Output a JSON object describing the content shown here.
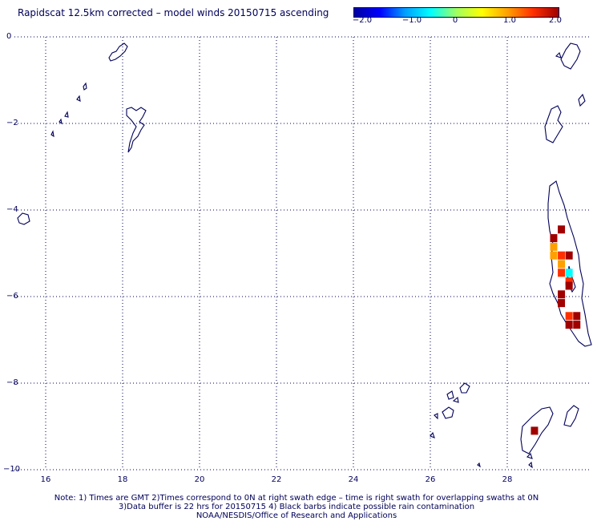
{
  "title": "Rapidscat 12.5km corrected – model winds 20150715 ascending",
  "colorbar": {
    "ticks": [
      "−2.0",
      "−1.0",
      "0",
      "1.0",
      "2.0"
    ],
    "range": [
      -2.0,
      2.0
    ],
    "colors": [
      "#0000a0",
      "#0000ff",
      "#00a0ff",
      "#00ffff",
      "#a0ff60",
      "#ffff00",
      "#ffa000",
      "#ff3000",
      "#a00000"
    ]
  },
  "axes": {
    "y_ticks": [
      "0",
      "−2",
      "−4",
      "−6",
      "−8",
      "−10"
    ],
    "x_ticks": [
      "16",
      "18",
      "20",
      "22",
      "24",
      "26",
      "28"
    ],
    "lat_range": [
      -10,
      0
    ],
    "lon_range": [
      15.2,
      29.5
    ]
  },
  "notes": {
    "line1": "Note: 1) Times are GMT 2)Times correspond to 0N at right swath edge – time is right swath for overlapping swaths at 0N",
    "line2": "3)Data buffer is 22 hrs for 20150715 4) Black barbs indicate possible rain contamination",
    "line3": "NOAA/NESDIS/Office of Research and Applications"
  },
  "wind_cells": [
    {
      "lon": 29.42,
      "lat": -4.45,
      "v": 2.2
    },
    {
      "lon": 29.22,
      "lat": -4.65,
      "v": 1.9
    },
    {
      "lon": 29.22,
      "lat": -4.85,
      "v": 1.2
    },
    {
      "lon": 29.22,
      "lat": -5.05,
      "v": 1.1
    },
    {
      "lon": 29.42,
      "lat": -5.05,
      "v": 1.3
    },
    {
      "lon": 29.62,
      "lat": -5.05,
      "v": 1.9
    },
    {
      "lon": 29.42,
      "lat": -5.25,
      "v": 0.8
    },
    {
      "lon": 29.42,
      "lat": -5.45,
      "v": 1.7
    },
    {
      "lon": 29.62,
      "lat": -5.45,
      "v": -0.6
    },
    {
      "lon": 29.62,
      "lat": -5.65,
      "v": 1.3
    },
    {
      "lon": 29.62,
      "lat": -5.75,
      "v": 2.2
    },
    {
      "lon": 29.42,
      "lat": -5.95,
      "v": 2.0
    },
    {
      "lon": 29.42,
      "lat": -6.15,
      "v": 1.9
    },
    {
      "lon": 29.62,
      "lat": -6.45,
      "v": 1.3
    },
    {
      "lon": 29.82,
      "lat": -6.45,
      "v": 1.8
    },
    {
      "lon": 29.62,
      "lat": -6.65,
      "v": 1.9
    },
    {
      "lon": 29.82,
      "lat": -6.65,
      "v": 1.9
    },
    {
      "lon": 28.72,
      "lat": -9.1,
      "v": 1.9
    }
  ]
}
